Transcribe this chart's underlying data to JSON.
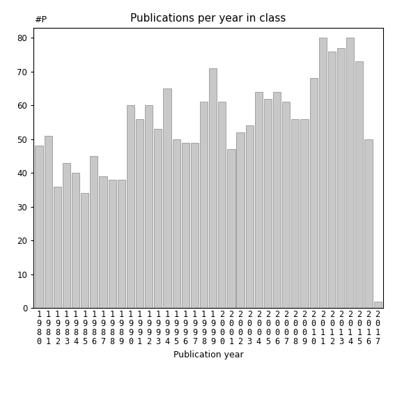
{
  "title": "Publications per year in class",
  "xlabel": "Publication year",
  "ylabel": "#P",
  "years": [
    1980,
    1981,
    1982,
    1983,
    1984,
    1985,
    1986,
    1987,
    1988,
    1989,
    1990,
    1991,
    1992,
    1993,
    1994,
    1995,
    1996,
    1997,
    1998,
    1999,
    2000,
    2001,
    2002,
    2003,
    2004,
    2005,
    2006,
    2007,
    2008,
    2009,
    2010,
    2011,
    2012,
    2013,
    2014,
    2015,
    2016,
    2017
  ],
  "values": [
    48,
    51,
    36,
    43,
    40,
    34,
    45,
    39,
    38,
    38,
    60,
    56,
    60,
    53,
    65,
    50,
    49,
    49,
    61,
    71,
    61,
    47,
    52,
    54,
    64,
    62,
    64,
    61,
    56,
    56,
    68,
    80,
    76,
    77,
    80,
    73,
    50,
    2
  ],
  "bar_color": "#c8c8c8",
  "bar_edge_color": "#888888",
  "ylim": [
    0,
    83
  ],
  "yticks": [
    0,
    10,
    20,
    30,
    40,
    50,
    60,
    70,
    80
  ],
  "bg_color": "#ffffff",
  "title_fontsize": 11,
  "label_fontsize": 9,
  "tick_fontsize": 8.5
}
